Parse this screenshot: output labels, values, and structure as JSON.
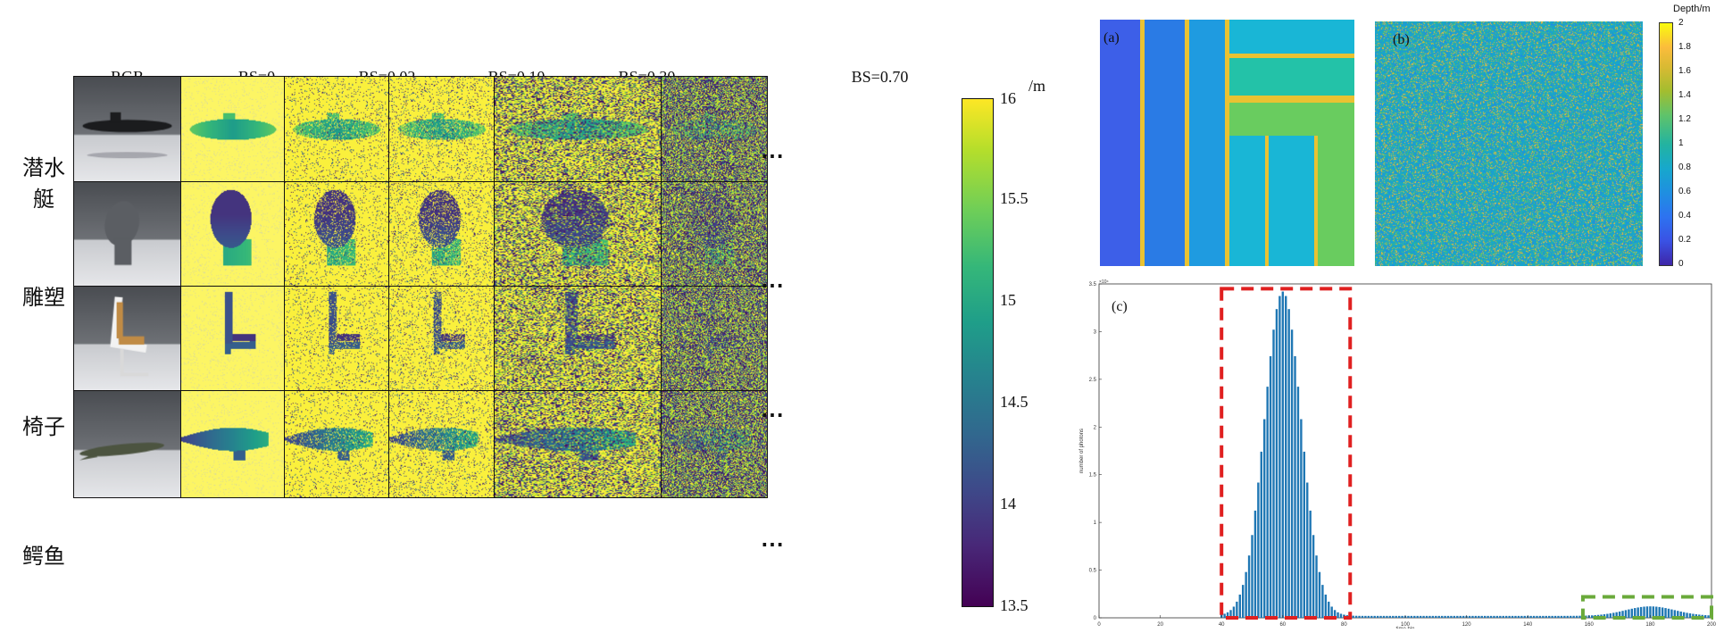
{
  "columns": [
    "RGB",
    "BS=0",
    "BS=0.02",
    "BS=0.10",
    "BS=0.30",
    "BS=0.70"
  ],
  "rows": [
    "潜水艇",
    "雕塑",
    "椅子",
    "鳄鱼"
  ],
  "ellipsis": "⋯",
  "colorbar": {
    "unit": "/m",
    "ticks": [
      "16",
      "15.5",
      "15",
      "14.5",
      "14",
      "13.5"
    ],
    "colormap": "viridis"
  },
  "panel_a": {
    "label": "(a)"
  },
  "panel_b": {
    "label": "(b)",
    "colorbar_title": "Depth/m",
    "ticks": [
      "2",
      "1.8",
      "1.6",
      "1.4",
      "1.2",
      "1",
      "0.8",
      "0.6",
      "0.4",
      "0.2",
      "0"
    ]
  },
  "panel_c": {
    "label": "(c)",
    "x_axis_label": "time bin",
    "y_axis_label": "number of photons",
    "y_exponent": "×10⁴",
    "x_ticks": [
      "0",
      "20",
      "40",
      "60",
      "80",
      "100",
      "120",
      "140",
      "160",
      "180",
      "200"
    ],
    "y_ticks": [
      "0",
      "0.5",
      "1",
      "1.5",
      "2",
      "2.5",
      "3",
      "3.5"
    ]
  },
  "chart_data": {
    "type": "bar",
    "xlabel": "time bin",
    "ylabel": "number of photons",
    "xlim": [
      0,
      200
    ],
    "ylim": [
      0,
      3.5
    ],
    "y_scale_note": "×10⁴",
    "signal_peak_center": 60,
    "signal_peak_height": 3.4,
    "signal_peak_width": 6,
    "background_level": 0.02,
    "secondary_peak_center": 180,
    "secondary_peak_height": 0.1,
    "highlight_boxes": [
      {
        "color": "#e02020",
        "x": [
          40,
          82
        ],
        "y": [
          0,
          3.45
        ]
      },
      {
        "color": "#6aaa3a",
        "x": [
          158,
          200
        ],
        "y": [
          0,
          0.22
        ]
      }
    ]
  }
}
